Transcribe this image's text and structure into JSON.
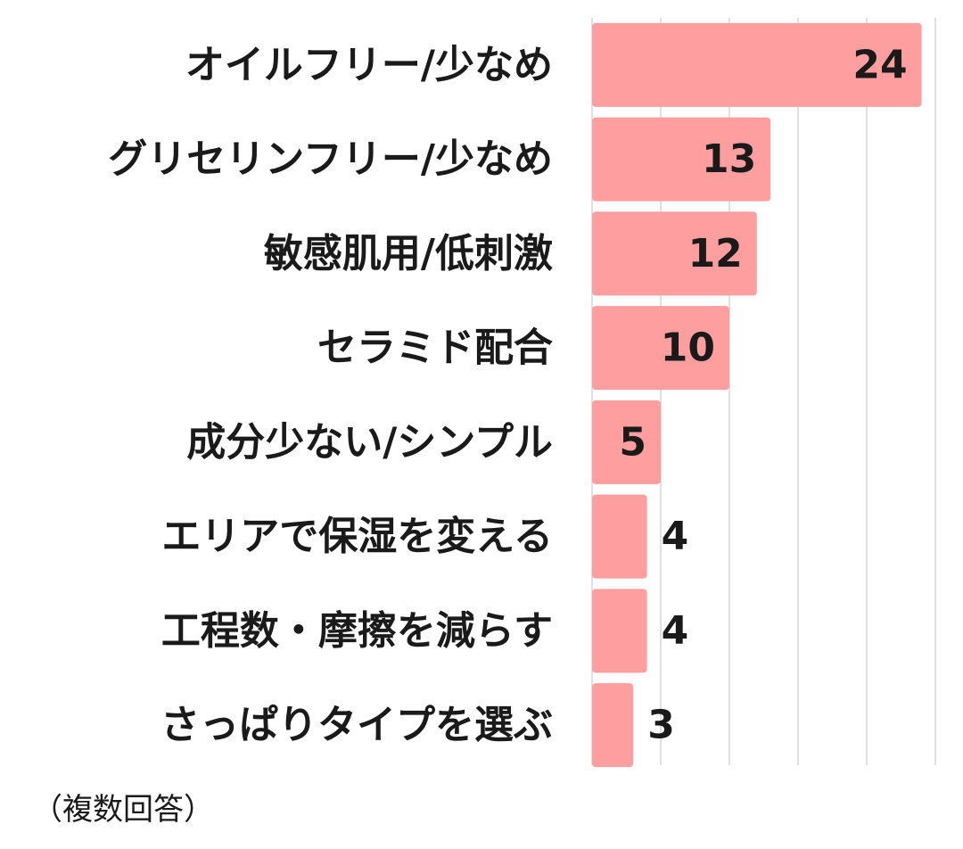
{
  "chart_data": {
    "type": "bar",
    "orientation": "horizontal",
    "categories": [
      "オイルフリー/少なめ",
      "グリセリンフリー/少なめ",
      "敏感肌用/低刺激",
      "セラミド配合",
      "成分少ない/シンプル",
      "エリアで保湿を変える",
      "工程数・摩擦を減らす",
      "さっぱりタイプを選ぶ"
    ],
    "values": [
      24,
      13,
      12,
      10,
      5,
      4,
      4,
      3
    ],
    "xlim": [
      0,
      25
    ],
    "grid": true,
    "title": "",
    "xlabel": "",
    "ylabel": "",
    "bar_color": "#ff9e9e",
    "text_color": "#1a1a1a"
  },
  "note": "（複数回答）"
}
